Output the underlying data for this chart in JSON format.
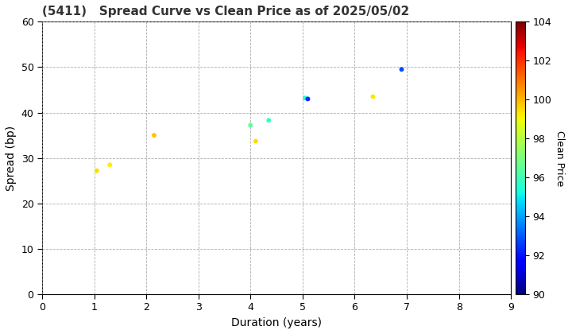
{
  "title": "(5411)   Spread Curve vs Clean Price as of 2025/05/02",
  "xlabel": "Duration (years)",
  "ylabel": "Spread (bp)",
  "colorbar_label": "Clean Price",
  "xlim": [
    0,
    9
  ],
  "ylim": [
    0,
    60
  ],
  "xticks": [
    0,
    1,
    2,
    3,
    4,
    5,
    6,
    7,
    8,
    9
  ],
  "yticks": [
    0,
    10,
    20,
    30,
    40,
    50,
    60
  ],
  "cmap_min": 90,
  "cmap_max": 104,
  "cticks": [
    90,
    92,
    94,
    96,
    98,
    100,
    102,
    104
  ],
  "points": [
    {
      "duration": 1.05,
      "spread": 27.2,
      "price": 99.5
    },
    {
      "duration": 1.3,
      "spread": 28.5,
      "price": 99.2
    },
    {
      "duration": 2.15,
      "spread": 35.0,
      "price": 99.8
    },
    {
      "duration": 4.0,
      "spread": 37.2,
      "price": 96.5
    },
    {
      "duration": 4.1,
      "spread": 33.7,
      "price": 99.5
    },
    {
      "duration": 4.35,
      "spread": 38.3,
      "price": 95.8
    },
    {
      "duration": 5.05,
      "spread": 43.2,
      "price": 95.5
    },
    {
      "duration": 5.1,
      "spread": 43.0,
      "price": 92.3
    },
    {
      "duration": 6.35,
      "spread": 43.5,
      "price": 99.3
    },
    {
      "duration": 6.9,
      "spread": 49.5,
      "price": 92.8
    }
  ],
  "marker_size": 18,
  "background_color": "#ffffff",
  "grid_color": "#999999",
  "title_fontsize": 11,
  "axis_fontsize": 10,
  "tick_fontsize": 9,
  "colorbar_fontsize": 9
}
